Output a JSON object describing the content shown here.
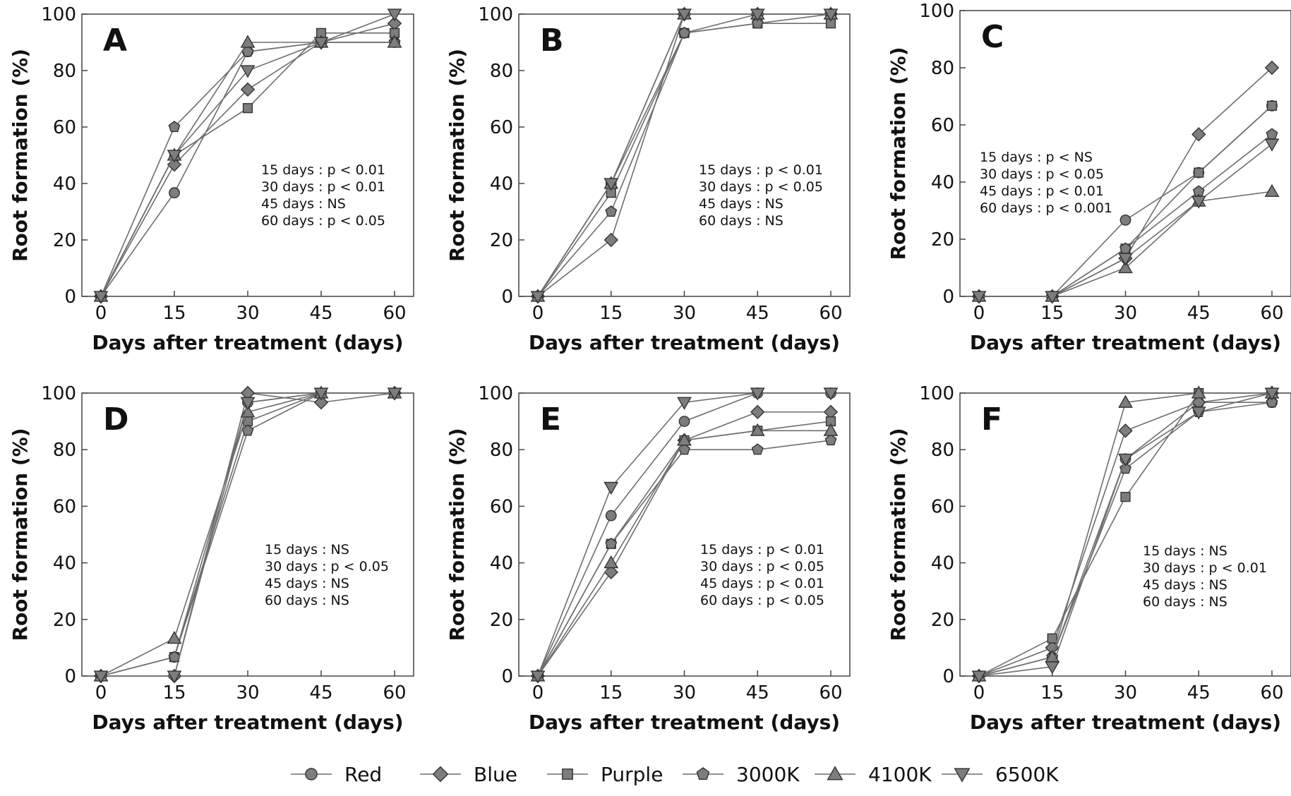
{
  "chart_data": [
    {
      "type": "line",
      "panel_label": "A",
      "xlabel": "Days after treatment (days)",
      "ylabel": "Root formation (%)",
      "x": [
        0,
        15,
        30,
        45,
        60
      ],
      "xlim": [
        0,
        60
      ],
      "ylim": [
        0,
        100
      ],
      "xticks": [
        "0",
        "15",
        "30",
        "45",
        "60"
      ],
      "yticks": [
        "0",
        "20",
        "40",
        "60",
        "80",
        "100"
      ],
      "annotation": [
        "15 days : p < 0.01",
        "30 days : p < 0.01",
        "45 days : NS",
        "60 days : p < 0.05"
      ],
      "series": [
        {
          "name": "Red",
          "values": [
            0,
            36.7,
            86.7,
            90,
            90
          ]
        },
        {
          "name": "Blue",
          "values": [
            0,
            46.7,
            73.3,
            90,
            96.7
          ]
        },
        {
          "name": "Purple",
          "values": [
            0,
            50,
            66.7,
            93.3,
            93.3
          ]
        },
        {
          "name": "3000K",
          "values": [
            0,
            60,
            86.7,
            90,
            90
          ]
        },
        {
          "name": "4100K",
          "values": [
            0,
            50,
            90,
            90,
            90
          ]
        },
        {
          "name": "6500K",
          "values": [
            0,
            50,
            80,
            90,
            100
          ]
        }
      ]
    },
    {
      "type": "line",
      "panel_label": "B",
      "xlabel": "Days after treatment (days)",
      "ylabel": "Root formation (%)",
      "x": [
        0,
        15,
        30,
        45,
        60
      ],
      "xlim": [
        0,
        60
      ],
      "ylim": [
        0,
        100
      ],
      "xticks": [
        "0",
        "15",
        "30",
        "45",
        "60"
      ],
      "yticks": [
        "0",
        "20",
        "40",
        "60",
        "80",
        "100"
      ],
      "annotation": [
        "15 days : p < 0.01",
        "30 days : p < 0.05",
        "45 days : NS",
        "60 days : NS"
      ],
      "series": [
        {
          "name": "Red",
          "values": [
            0,
            40,
            93.3,
            100,
            100
          ]
        },
        {
          "name": "Blue",
          "values": [
            0,
            20,
            100,
            100,
            100
          ]
        },
        {
          "name": "Purple",
          "values": [
            0,
            36.7,
            93.3,
            96.7,
            96.7
          ]
        },
        {
          "name": "3000K",
          "values": [
            0,
            30,
            93.3,
            96.7,
            100
          ]
        },
        {
          "name": "4100K",
          "values": [
            0,
            40,
            100,
            100,
            100
          ]
        },
        {
          "name": "6500K",
          "values": [
            0,
            40,
            100,
            100,
            100
          ]
        }
      ]
    },
    {
      "type": "line",
      "panel_label": "C",
      "xlabel": "Days after treatment (days)",
      "ylabel": "Root formation (%)",
      "x": [
        0,
        15,
        30,
        45,
        60
      ],
      "xlim": [
        0,
        60
      ],
      "ylim": [
        0,
        100
      ],
      "xticks": [
        "0",
        "15",
        "30",
        "45",
        "60"
      ],
      "yticks": [
        "0",
        "20",
        "40",
        "60",
        "80",
        "100"
      ],
      "annotation": [
        "15 days : p < NS",
        "30 days : p < 0.05",
        "45 days : p < 0.01",
        "60 days : p < 0.001"
      ],
      "series": [
        {
          "name": "Red",
          "values": [
            0,
            0,
            26.7,
            43.3,
            66.7
          ]
        },
        {
          "name": "Blue",
          "values": [
            0,
            0,
            13.3,
            56.7,
            80
          ]
        },
        {
          "name": "Purple",
          "values": [
            0,
            0,
            16.7,
            43.3,
            66.7
          ]
        },
        {
          "name": "3000K",
          "values": [
            0,
            0,
            16.7,
            36.7,
            56.7
          ]
        },
        {
          "name": "4100K",
          "values": [
            0,
            0,
            10,
            33.3,
            36.7
          ]
        },
        {
          "name": "6500K",
          "values": [
            0,
            0,
            13.3,
            33.3,
            53.3
          ]
        }
      ]
    },
    {
      "type": "line",
      "panel_label": "D",
      "xlabel": "Days after treatment (days)",
      "ylabel": "Root formation (%)",
      "x": [
        0,
        15,
        30,
        45,
        60
      ],
      "xlim": [
        0,
        60
      ],
      "ylim": [
        0,
        100
      ],
      "xticks": [
        "0",
        "15",
        "30",
        "45",
        "60"
      ],
      "yticks": [
        "0",
        "20",
        "40",
        "60",
        "80",
        "100"
      ],
      "annotation": [
        "15 days : NS",
        "30 days : p < 0.05",
        "45 days : NS",
        "60 days : NS"
      ],
      "series": [
        {
          "name": "Red",
          "values": [
            0,
            6.7,
            96.7,
            100,
            100
          ]
        },
        {
          "name": "Blue",
          "values": [
            0,
            0,
            100,
            96.7,
            100
          ]
        },
        {
          "name": "Purple",
          "values": [
            0,
            6.7,
            90,
            100,
            100
          ]
        },
        {
          "name": "3000K",
          "values": [
            0,
            6.7,
            86.7,
            100,
            100
          ]
        },
        {
          "name": "4100K",
          "values": [
            0,
            13.3,
            93.3,
            100,
            100
          ]
        },
        {
          "name": "6500K",
          "values": [
            0,
            0,
            96.7,
            100,
            100
          ]
        }
      ]
    },
    {
      "type": "line",
      "panel_label": "E",
      "xlabel": "Days after treatment (days)",
      "ylabel": "Root formation (%)",
      "x": [
        0,
        15,
        30,
        45,
        60
      ],
      "xlim": [
        0,
        60
      ],
      "ylim": [
        0,
        100
      ],
      "xticks": [
        "0",
        "15",
        "30",
        "45",
        "60"
      ],
      "yticks": [
        "0",
        "20",
        "40",
        "60",
        "80",
        "100"
      ],
      "annotation": [
        "15 days : p < 0.01",
        "30 days : p < 0.05",
        "45 days : p < 0.01",
        "60 days : p < 0.05"
      ],
      "series": [
        {
          "name": "Red",
          "values": [
            0,
            56.7,
            90,
            100,
            100
          ]
        },
        {
          "name": "Blue",
          "values": [
            0,
            36.7,
            83.3,
            93.3,
            93.3
          ]
        },
        {
          "name": "Purple",
          "values": [
            0,
            46.7,
            83.3,
            86.7,
            90
          ]
        },
        {
          "name": "3000K",
          "values": [
            0,
            46.7,
            80,
            80,
            83.3
          ]
        },
        {
          "name": "4100K",
          "values": [
            0,
            40,
            83.3,
            86.7,
            86.7
          ]
        },
        {
          "name": "6500K",
          "values": [
            0,
            66.7,
            96.7,
            100,
            100
          ]
        }
      ]
    },
    {
      "type": "line",
      "panel_label": "F",
      "xlabel": "Days after treatment (days)",
      "ylabel": "Root formation (%)",
      "x": [
        0,
        15,
        30,
        45,
        60
      ],
      "xlim": [
        0,
        60
      ],
      "ylim": [
        0,
        100
      ],
      "xticks": [
        "0",
        "15",
        "30",
        "45",
        "60"
      ],
      "yticks": [
        "0",
        "20",
        "40",
        "60",
        "80",
        "100"
      ],
      "annotation": [
        "15 days : NS",
        "30 days : p < 0.01",
        "45 days : NS",
        "60 days : NS"
      ],
      "series": [
        {
          "name": "Red",
          "values": [
            0,
            6.7,
            76.7,
            96.7,
            96.7
          ]
        },
        {
          "name": "Blue",
          "values": [
            0,
            10,
            86.7,
            96.7,
            100
          ]
        },
        {
          "name": "Purple",
          "values": [
            0,
            13.3,
            63.3,
            100,
            100
          ]
        },
        {
          "name": "3000K",
          "values": [
            0,
            6.7,
            73.3,
            93.3,
            96.7
          ]
        },
        {
          "name": "4100K",
          "values": [
            0,
            6.7,
            96.7,
            100,
            100
          ]
        },
        {
          "name": "6500K",
          "values": [
            0,
            3.3,
            76.7,
            93.3,
            100
          ]
        }
      ]
    }
  ],
  "legend": {
    "placement": "bottom-center",
    "entries": [
      {
        "name": "Red",
        "marker": "circle"
      },
      {
        "name": "Blue",
        "marker": "diamond"
      },
      {
        "name": "Purple",
        "marker": "square"
      },
      {
        "name": "3000K",
        "marker": "pentagon"
      },
      {
        "name": "4100K",
        "marker": "triangle-up"
      },
      {
        "name": "6500K",
        "marker": "triangle-down"
      }
    ]
  },
  "style": {
    "marker_fill": "#7d7d7d",
    "marker_stroke": "#333333",
    "line_color": "#6e6e6e",
    "axis_color": "#444444"
  }
}
